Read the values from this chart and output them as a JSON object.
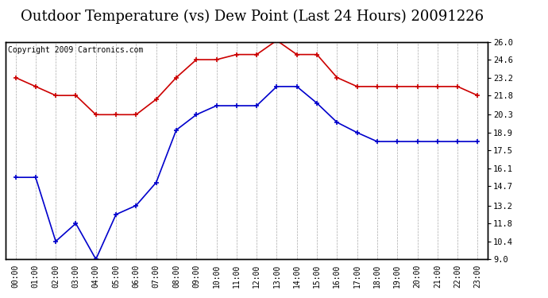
{
  "title": "Outdoor Temperature (vs) Dew Point (Last 24 Hours) 20091226",
  "copyright": "Copyright 2009 Cartronics.com",
  "hours": [
    "00:00",
    "01:00",
    "02:00",
    "03:00",
    "04:00",
    "05:00",
    "06:00",
    "07:00",
    "08:00",
    "09:00",
    "10:00",
    "11:00",
    "12:00",
    "13:00",
    "14:00",
    "15:00",
    "16:00",
    "17:00",
    "18:00",
    "19:00",
    "20:00",
    "21:00",
    "22:00",
    "23:00"
  ],
  "temp": [
    23.2,
    22.5,
    21.8,
    21.8,
    20.3,
    20.3,
    20.3,
    21.5,
    23.2,
    24.6,
    24.6,
    25.0,
    25.0,
    26.1,
    25.0,
    25.0,
    23.2,
    22.5,
    22.5,
    22.5,
    22.5,
    22.5,
    22.5,
    21.8
  ],
  "dew": [
    15.4,
    15.4,
    10.4,
    11.8,
    9.0,
    12.5,
    13.2,
    15.0,
    19.1,
    20.3,
    21.0,
    21.0,
    21.0,
    22.5,
    22.5,
    21.2,
    19.7,
    18.9,
    18.2,
    18.2,
    18.2,
    18.2,
    18.2,
    18.2
  ],
  "temp_color": "#cc0000",
  "dew_color": "#0000cc",
  "grid_color": "#aaaaaa",
  "bg_color": "#ffffff",
  "yticks": [
    9.0,
    10.4,
    11.8,
    13.2,
    14.7,
    16.1,
    17.5,
    18.9,
    20.3,
    21.8,
    23.2,
    24.6,
    26.0
  ],
  "ylim": [
    9.0,
    26.0
  ],
  "title_fontsize": 13,
  "copyright_fontsize": 7
}
